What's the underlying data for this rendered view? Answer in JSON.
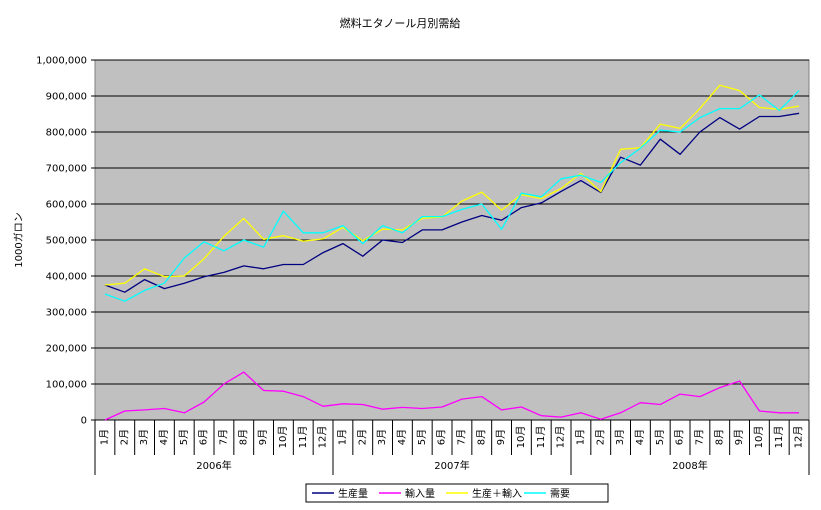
{
  "chart_data": {
    "type": "line",
    "title": "燃料エタノール月別需給",
    "ylabel": "1000ガロン",
    "xlabel": "",
    "ylim": [
      0,
      1000000
    ],
    "yticks": [
      0,
      100000,
      200000,
      300000,
      400000,
      500000,
      600000,
      700000,
      800000,
      900000,
      1000000
    ],
    "ytick_labels": [
      "0",
      "100,000",
      "200,000",
      "300,000",
      "400,000",
      "500,000",
      "600,000",
      "700,000",
      "800,000",
      "900,000",
      "1,000,000"
    ],
    "grid": true,
    "legend_position": "bottom",
    "years": [
      "2006年",
      "2007年",
      "2008年"
    ],
    "categories": [
      "1月",
      "2月",
      "3月",
      "4月",
      "5月",
      "6月",
      "7月",
      "8月",
      "9月",
      "10月",
      "11月",
      "12月",
      "1月",
      "2月",
      "3月",
      "4月",
      "5月",
      "6月",
      "7月",
      "8月",
      "9月",
      "10月",
      "11月",
      "12月",
      "1月",
      "2月",
      "3月",
      "4月",
      "5月",
      "6月",
      "7月",
      "8月",
      "9月",
      "10月",
      "11月",
      "12月"
    ],
    "series": [
      {
        "name": "生産量",
        "color": "#000080",
        "values": [
          375000,
          355000,
          390000,
          365000,
          380000,
          398000,
          410000,
          428000,
          420000,
          432000,
          432000,
          465000,
          490000,
          455000,
          500000,
          493000,
          528000,
          528000,
          550000,
          568000,
          555000,
          590000,
          603000,
          635000,
          665000,
          632000,
          730000,
          708000,
          780000,
          738000,
          800000,
          840000,
          808000,
          843000,
          843000,
          852000
        ]
      },
      {
        "name": "輸入量",
        "color": "#ff00ff",
        "values": [
          0,
          25000,
          28000,
          32000,
          20000,
          50000,
          100000,
          133000,
          82000,
          80000,
          65000,
          38000,
          45000,
          43000,
          30000,
          35000,
          32000,
          36000,
          58000,
          65000,
          28000,
          36000,
          12000,
          8000,
          20000,
          2000,
          20000,
          48000,
          43000,
          72000,
          65000,
          90000,
          108000,
          25000,
          20000,
          20000
        ]
      },
      {
        "name": "生産＋輸入",
        "color": "#ffff00",
        "values": [
          375000,
          380000,
          420000,
          398000,
          400000,
          448000,
          510000,
          560000,
          502000,
          512000,
          497000,
          503000,
          535000,
          498000,
          530000,
          528000,
          560000,
          564000,
          608000,
          633000,
          583000,
          626000,
          615000,
          643000,
          685000,
          634000,
          752000,
          756000,
          822000,
          810000,
          865000,
          930000,
          915000,
          868000,
          863000,
          872000
        ]
      },
      {
        "name": "需要",
        "color": "#00ffff",
        "values": [
          350000,
          330000,
          360000,
          380000,
          450000,
          495000,
          470000,
          500000,
          480000,
          580000,
          520000,
          520000,
          540000,
          490000,
          540000,
          520000,
          565000,
          565000,
          585000,
          600000,
          530000,
          630000,
          620000,
          670000,
          680000,
          660000,
          715000,
          755000,
          805000,
          800000,
          840000,
          865000,
          865000,
          903000,
          860000,
          915000
        ]
      }
    ]
  }
}
